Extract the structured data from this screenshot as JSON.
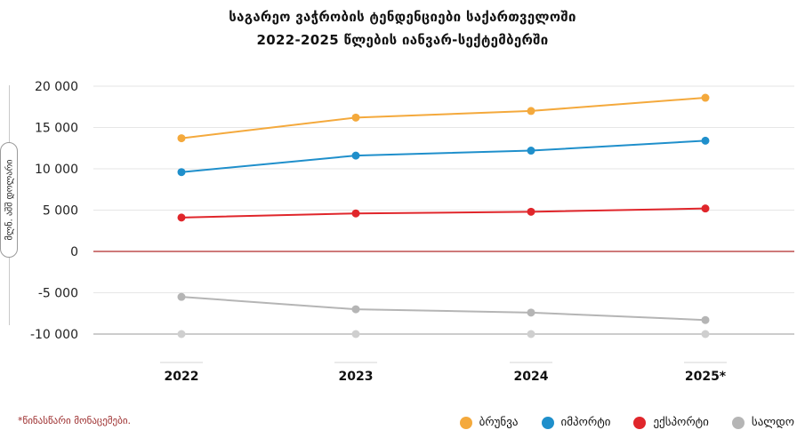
{
  "chart_data": {
    "type": "line",
    "title": [
      "საგარეო ვაჭრობის ტენდენციები საქართველოში",
      "2022-2025 წლების იანვარ-სექტემბერში"
    ],
    "ylabel": "მლნ. აშშ დოლარი",
    "categories": [
      "2022",
      "2023",
      "2024",
      "2025*"
    ],
    "ylim": [
      -10000,
      20000
    ],
    "yticks": [
      20000,
      15000,
      10000,
      5000,
      0,
      -5000,
      -10000
    ],
    "ytick_labels": [
      "20 000",
      "15 000",
      "10 000",
      "5 000",
      "0",
      "-5 000",
      "-10 000"
    ],
    "series": [
      {
        "name": "ბრუნვა",
        "color": "#F4A93C",
        "values": [
          13700,
          16200,
          17000,
          18600
        ]
      },
      {
        "name": "იმპორტი",
        "color": "#1F8FCB",
        "values": [
          9600,
          11600,
          12200,
          13400
        ]
      },
      {
        "name": "ექსპორტი",
        "color": "#E0262B",
        "values": [
          4100,
          4600,
          4800,
          5200
        ]
      },
      {
        "name": "სალდო",
        "color": "#B5B5B5",
        "values": [
          -5500,
          -7000,
          -7400,
          -8300
        ]
      }
    ],
    "zero_line_color": "#B02A2A",
    "baseline_dot_color": "#CFCFCF"
  },
  "note": "*წინასწარი მონაცემები."
}
